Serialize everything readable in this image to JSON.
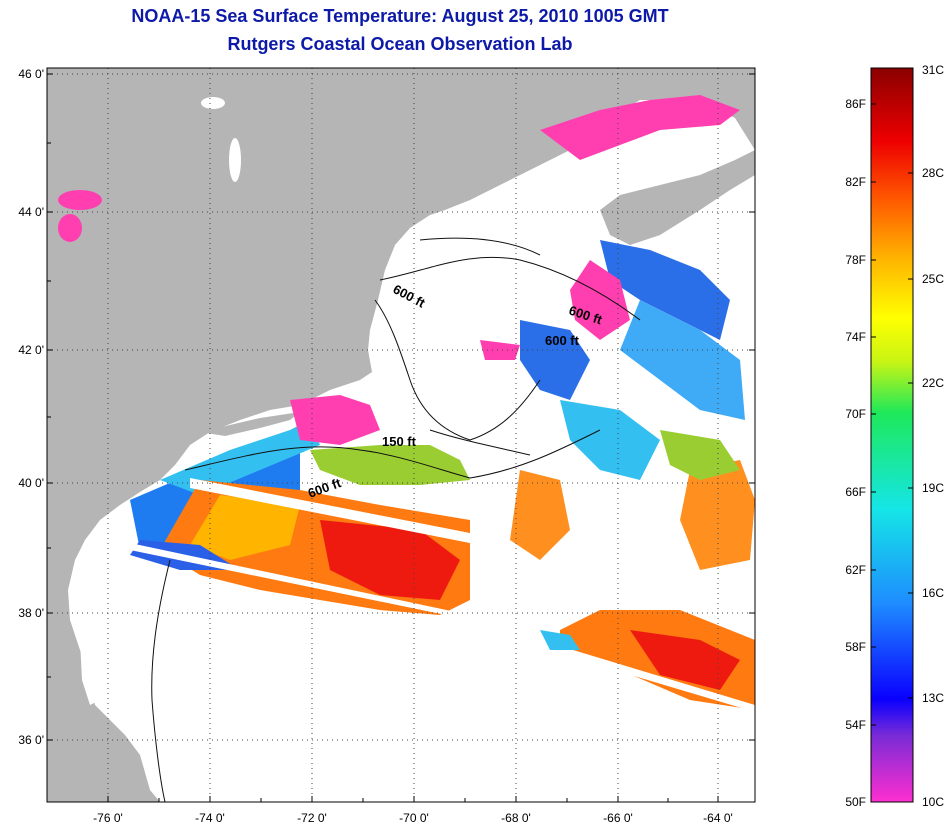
{
  "title": "NOAA-15 Sea Surface Temperature:  August 25, 2010 1005 GMT",
  "subtitle": "Rutgers Coastal Ocean Observation Lab",
  "map": {
    "lat_labels": [
      "46 0'",
      "44 0'",
      "42 0'",
      "40 0'",
      "38 0'",
      "36 0'"
    ],
    "lon_labels": [
      "-76 0'",
      "-74 0'",
      "-72 0'",
      "-70 0'",
      "-68 0'",
      "-66 0'",
      "-64 0'"
    ],
    "contour_labels": [
      "600 ft",
      "600 ft",
      "600 ft",
      "150 ft",
      "600 ft"
    ],
    "colors": {
      "land": "#b5b5b5",
      "no_data": "#ffffff",
      "grid": "#444444"
    }
  },
  "colorbar": {
    "fahrenheit": [
      "86F",
      "82F",
      "78F",
      "74F",
      "70F",
      "66F",
      "62F",
      "58F",
      "54F",
      "50F"
    ],
    "celsius": [
      "31C",
      "28C",
      "25C",
      "22C",
      "19C",
      "16C",
      "13C",
      "10C"
    ],
    "gradient": [
      "#ff2fcf",
      "#7a2bd6",
      "#0a00ff",
      "#1e8cff",
      "#15e6e6",
      "#1ee85a",
      "#c8f514",
      "#ffff00",
      "#ffb400",
      "#ff5a00",
      "#ee0000",
      "#8a0000"
    ]
  }
}
